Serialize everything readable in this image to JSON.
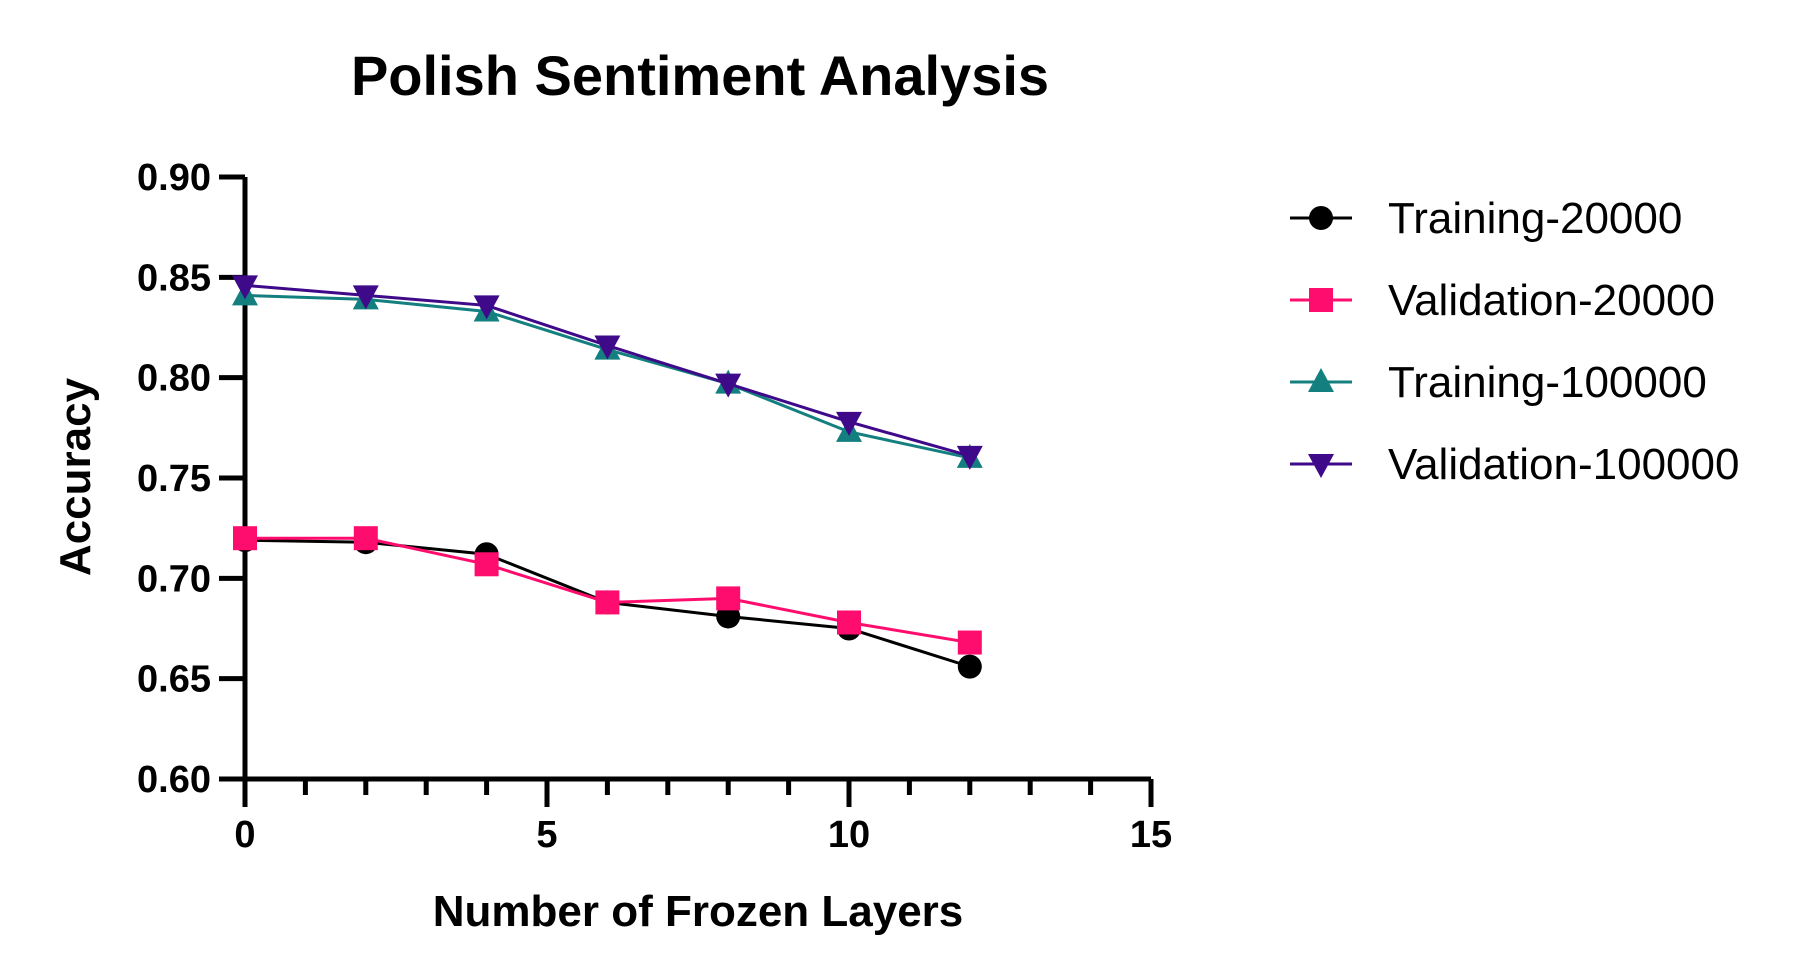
{
  "chart_data": {
    "type": "line",
    "title": "Polish Sentiment Analysis",
    "xlabel": "Number of Frozen  Layers",
    "ylabel": "Accuracy",
    "xlim": [
      0,
      15
    ],
    "ylim": [
      0.6,
      0.9
    ],
    "x_ticks": [
      "0",
      "5",
      "10",
      "15"
    ],
    "y_ticks": [
      "0.60",
      "0.65",
      "0.70",
      "0.75",
      "0.80",
      "0.85",
      "0.90"
    ],
    "grid": false,
    "legend_position": "right",
    "x": [
      0,
      2,
      4,
      6,
      8,
      10,
      12
    ],
    "series": [
      {
        "name": "Training-20000",
        "marker": "circle",
        "color": "#000000",
        "values": [
          0.719,
          0.718,
          0.712,
          0.688,
          0.681,
          0.675,
          0.656
        ]
      },
      {
        "name": "Validation-20000",
        "marker": "square",
        "color": "#ff0d6e",
        "values": [
          0.72,
          0.72,
          0.707,
          0.688,
          0.69,
          0.678,
          0.668
        ]
      },
      {
        "name": "Training-100000",
        "marker": "triangle-up",
        "color": "#137f7f",
        "values": [
          0.841,
          0.839,
          0.833,
          0.814,
          0.797,
          0.773,
          0.76
        ]
      },
      {
        "name": "Validation-100000",
        "marker": "triangle-down",
        "color": "#3f0a8a",
        "values": [
          0.846,
          0.841,
          0.836,
          0.816,
          0.797,
          0.778,
          0.761
        ]
      }
    ]
  }
}
